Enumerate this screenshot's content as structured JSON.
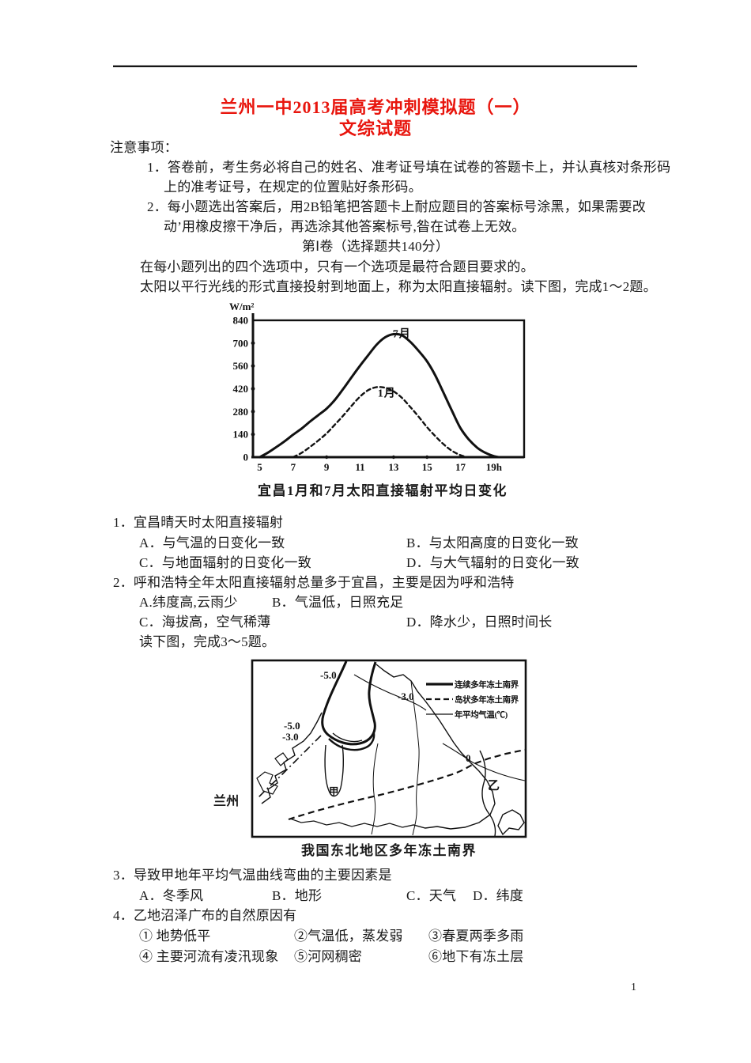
{
  "page": {
    "number": "1"
  },
  "header": {
    "title": "兰州一中2013届高考冲刺模拟题（一）",
    "subtitle": "文综试题",
    "accent_color": "#e8150d"
  },
  "notices": {
    "heading": "注意事项：",
    "items": [
      {
        "line1": "1．答卷前，考生务必将自己的姓名、准考证号填在试卷的答题卡上，并认真核对条形码",
        "line2": "上的准考证号，在规定的位置贴好条形码。"
      },
      {
        "line1": "2．每小题选出答案后，用2B铅笔把答题卡上耐应题目的答案标号涂黑，如果需要改",
        "line2": "动’用橡皮擦干净后，再选涂其他答案标号,昝在试卷上无效。"
      }
    ]
  },
  "section": {
    "heading": "第Ⅰ卷（选择题共140分）",
    "instruction": "在每小题列出的四个选项中，只有一个选项是最符合题目要求的。",
    "intro": "太阳以平行光线的形式直接投射到地面上，称为太阳直接辐射。读下图，完成1～2题。",
    "map_intro": "读下图，完成3～5题。"
  },
  "chart_data": {
    "type": "line",
    "title": "宜昌1月和7月太阳直接辐射平均日变化",
    "ylabel": "W/m²",
    "xlabel_unit": "h",
    "xlim": [
      4.6,
      20.8
    ],
    "ylim": [
      0,
      840
    ],
    "x_ticks": [
      5,
      7,
      9,
      11,
      13,
      15,
      17,
      19
    ],
    "x_tick_labels": [
      "5",
      "7",
      "9",
      "11",
      "13",
      "15",
      "17",
      "19h"
    ],
    "y_ticks": [
      840,
      700,
      560,
      420,
      280,
      140,
      0
    ],
    "y_tick_dots": [
      700,
      560,
      420,
      280,
      140
    ],
    "x_tick_dots": [
      9,
      13,
      15
    ],
    "grid": false,
    "legend_position": "curve-labels",
    "series": [
      {
        "name": "7月",
        "style": "solid",
        "label_pos": [
          12.95,
          735
        ],
        "points": [
          [
            5,
            0
          ],
          [
            5.5,
            28
          ],
          [
            6,
            62
          ],
          [
            6.5,
            98
          ],
          [
            7,
            138
          ],
          [
            7.5,
            175
          ],
          [
            8,
            218
          ],
          [
            8.5,
            258
          ],
          [
            9,
            298
          ],
          [
            9.5,
            352
          ],
          [
            10,
            420
          ],
          [
            10.5,
            492
          ],
          [
            11,
            562
          ],
          [
            11.5,
            628
          ],
          [
            12,
            692
          ],
          [
            12.5,
            736
          ],
          [
            13,
            755
          ],
          [
            13.5,
            748
          ],
          [
            14,
            708
          ],
          [
            14.5,
            652
          ],
          [
            15,
            588
          ],
          [
            15.5,
            500
          ],
          [
            16,
            392
          ],
          [
            16.5,
            282
          ],
          [
            17,
            178
          ],
          [
            17.5,
            108
          ],
          [
            18,
            58
          ],
          [
            18.5,
            26
          ],
          [
            19,
            6
          ],
          [
            19.3,
            0
          ]
        ]
      },
      {
        "name": "1月",
        "style": "dashed",
        "label_pos": [
          12.05,
          372
        ],
        "points": [
          [
            7,
            0
          ],
          [
            7.5,
            26
          ],
          [
            8,
            62
          ],
          [
            8.5,
            102
          ],
          [
            9,
            146
          ],
          [
            9.5,
            200
          ],
          [
            10,
            256
          ],
          [
            10.5,
            316
          ],
          [
            11,
            372
          ],
          [
            11.5,
            412
          ],
          [
            12,
            430
          ],
          [
            12.5,
            426
          ],
          [
            13,
            404
          ],
          [
            13.5,
            364
          ],
          [
            14,
            308
          ],
          [
            14.5,
            248
          ],
          [
            15,
            184
          ],
          [
            15.5,
            128
          ],
          [
            16,
            78
          ],
          [
            16.5,
            38
          ],
          [
            17,
            12
          ],
          [
            17.4,
            0
          ]
        ]
      }
    ]
  },
  "map_figure": {
    "caption": "我国东北地区多年冻土南界",
    "city_label": "兰州",
    "labels": {
      "iso_top": "-5.0",
      "iso_right": "-3.0",
      "iso_left1": "-5.0",
      "iso_left2": "-3.0",
      "iso_zero": "0",
      "region_a": "甲",
      "region_b": "乙"
    },
    "legend": [
      {
        "style": "thick-solid",
        "label": "连续多年冻土南界"
      },
      {
        "style": "dashed",
        "label": "岛状多年冻土南界"
      },
      {
        "style": "thin-solid",
        "label": "年平均气温(℃)"
      }
    ]
  },
  "questions": {
    "q1": {
      "stem": "1．宜昌晴天时太阳直接辐射",
      "options": [
        "A．与气温的日变化一致",
        "B．与太阳高度的日变化一致",
        "C．与地面辐射的日变化一致",
        "D．与大气辐射的日变化一致"
      ]
    },
    "q2": {
      "stem": "2．呼和浩特全年太阳直接辐射总量多于宜昌，主要是因为呼和浩特",
      "options": [
        "A.纬度高,云雨少",
        "B．气温低，日照充足",
        "C．海拔高，空气稀薄",
        "D．降水少，日照时间长"
      ]
    },
    "q3": {
      "stem": "3．导致甲地年平均气温曲线弯曲的主要因素是",
      "options": [
        "A．冬季风",
        "B．地形",
        "C．天气",
        "D．纬度"
      ]
    },
    "q4": {
      "stem": "4．乙地沼泽广布的自然原因有",
      "options": [
        "① 地势低平",
        "②气温低，蒸发弱",
        "③春夏两季多雨",
        "④ 主要河流有凌汛现象",
        "⑤河网稠密",
        "⑥地下有冻土层"
      ]
    }
  }
}
